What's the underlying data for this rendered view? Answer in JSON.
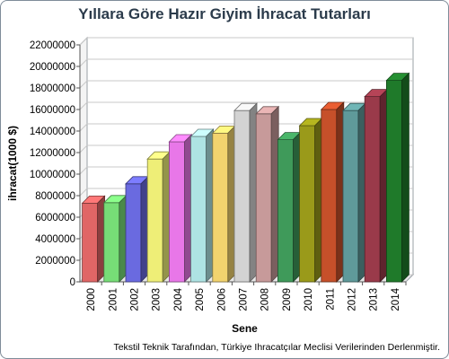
{
  "chart_data": {
    "type": "bar",
    "title": "Yıllara Göre Hazır Giyim İhracat Tutarları",
    "xlabel": "Sene",
    "ylabel": "ihracat(1000 $)",
    "categories": [
      "2000",
      "2001",
      "2002",
      "2003",
      "2004",
      "2005",
      "2006",
      "2007",
      "2008",
      "2009",
      "2010",
      "2011",
      "2012",
      "2013",
      "2014"
    ],
    "values": [
      7300000,
      7350000,
      9100000,
      11400000,
      13000000,
      13500000,
      13800000,
      15900000,
      15600000,
      13200000,
      14500000,
      16000000,
      15900000,
      17200000,
      18700000
    ],
    "yticks": [
      "0",
      "2000000",
      "4000000",
      "6000000",
      "8000000",
      "10000000",
      "12000000",
      "14000000",
      "16000000",
      "18000000",
      "20000000",
      "22000000"
    ],
    "ylim": [
      0,
      22000000
    ],
    "grid": true,
    "legend": "none",
    "style": "3d-bars",
    "bar_colors": [
      "#e06666",
      "#77dd77",
      "#6a6ae0",
      "#eeee77",
      "#e877e8",
      "#aee3e3",
      "#f2d36e",
      "#d3d3d3",
      "#c79a9a",
      "#3f9a5a",
      "#9a9a1a",
      "#c6502a",
      "#5f9a9a",
      "#9a3a4a",
      "#1f7a2a"
    ],
    "grid_color": "#c8c8c8",
    "wall_color": "#ffffff"
  },
  "footer": {
    "note": "Tekstil Teknik Tarafından, Türkiye Ihracatçılar Meclisi Verilerinden Derlenmiştir."
  }
}
